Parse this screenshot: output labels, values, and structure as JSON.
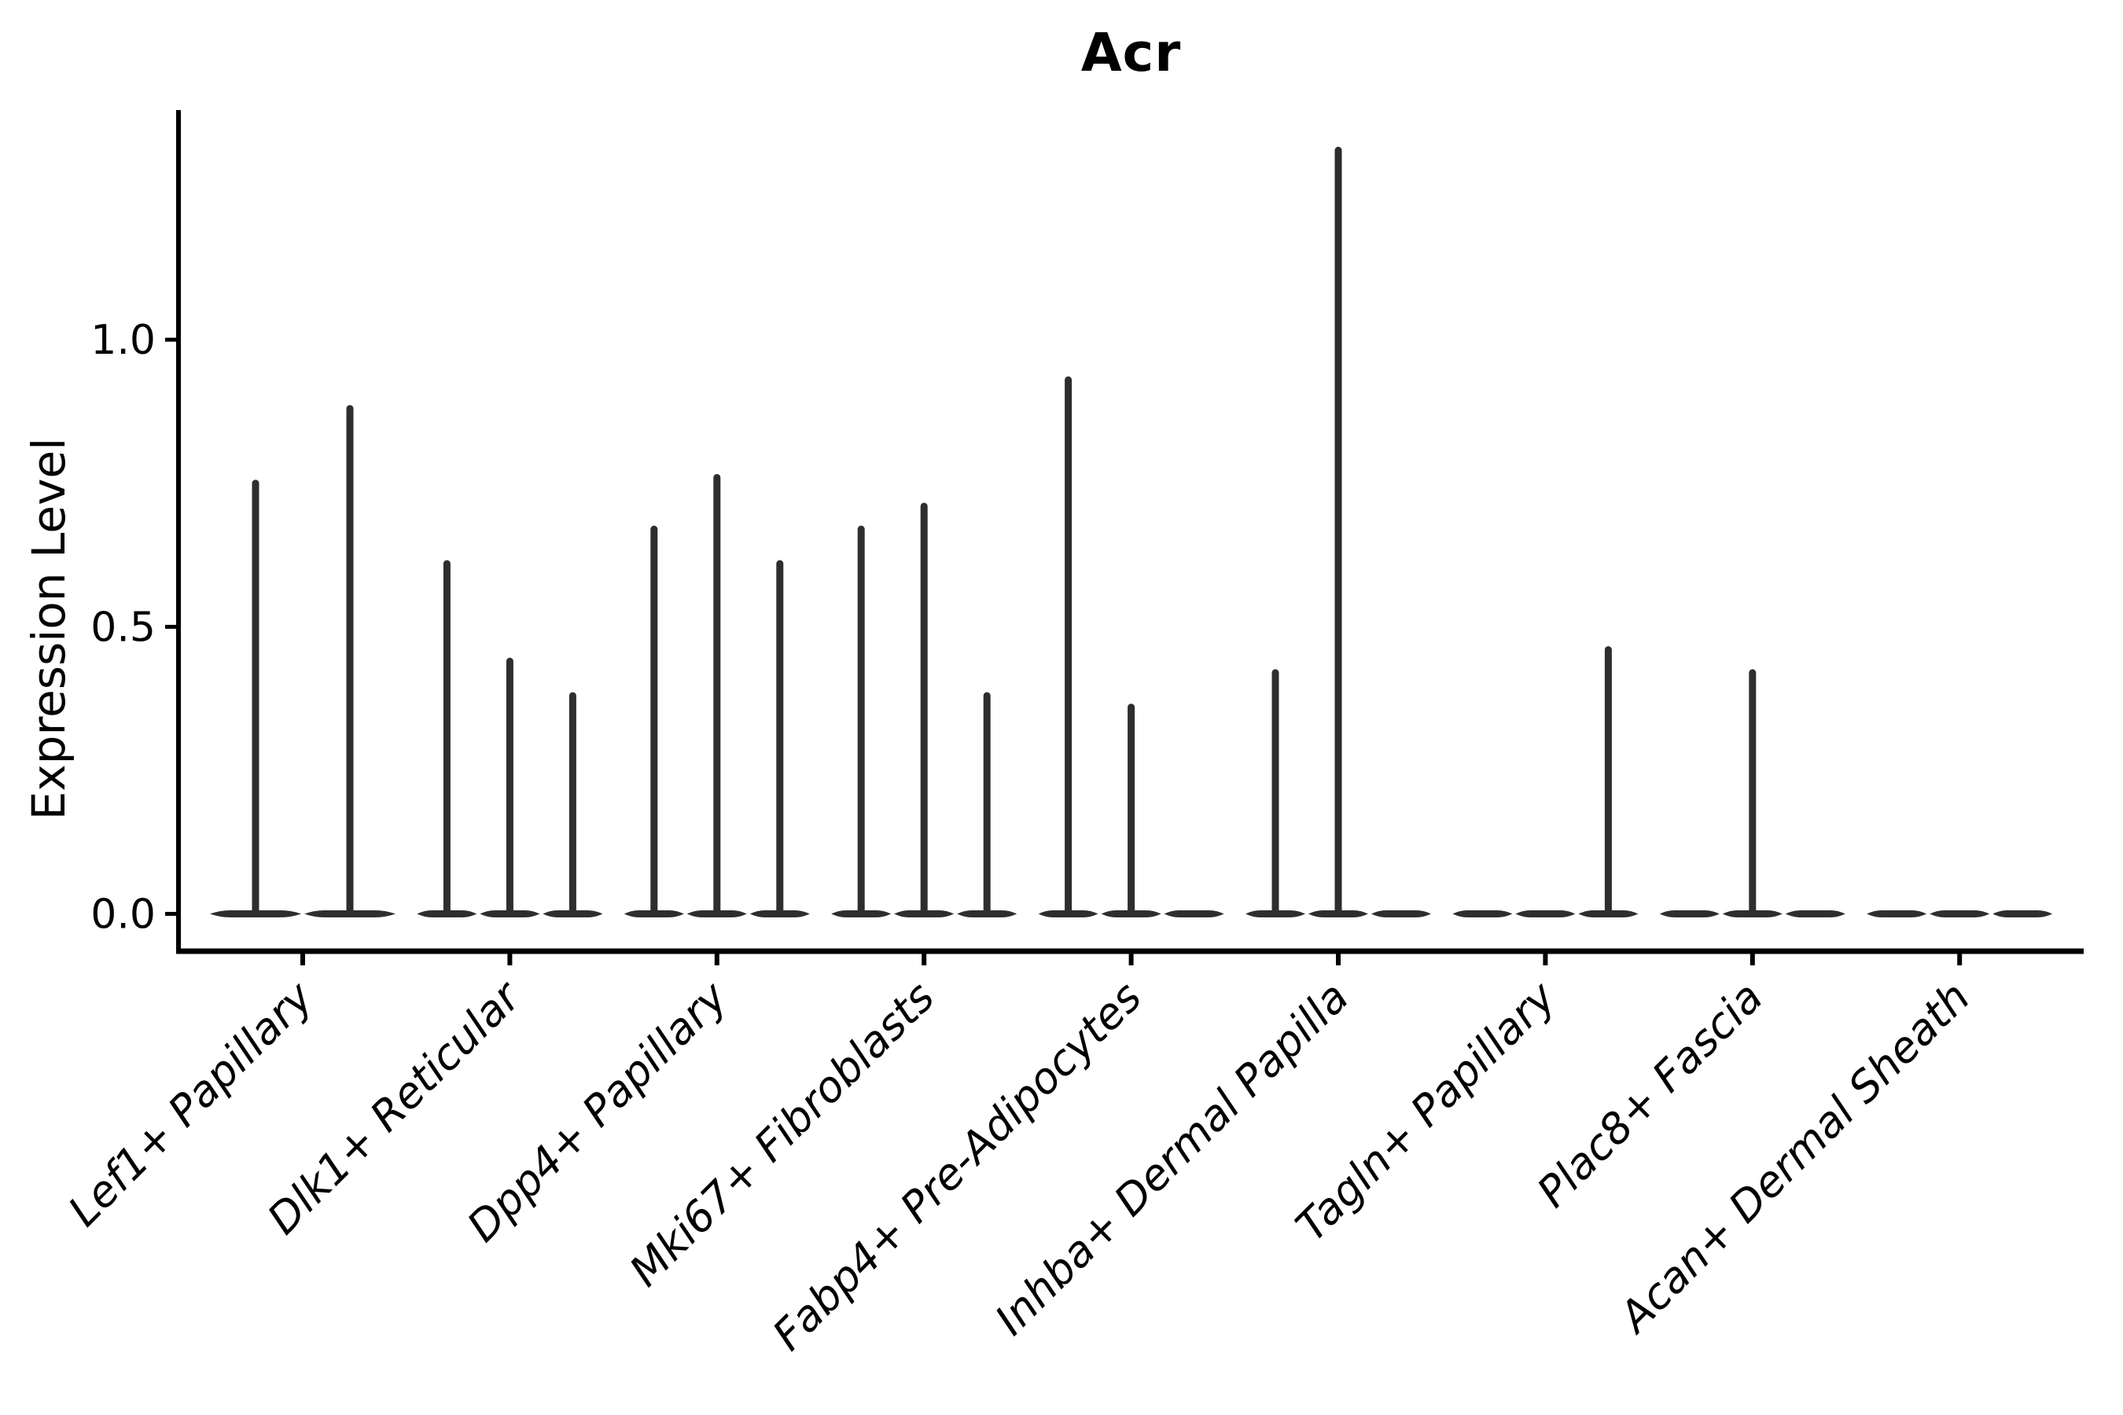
{
  "title": "Acr",
  "ylabel": "Expression Level",
  "colors": {
    "violin_fill": "#2e2e2e",
    "axis": "#000000",
    "text": "#000000",
    "background": "#ffffff"
  },
  "chart_data": {
    "type": "violin",
    "title": "Acr",
    "xlabel": "",
    "ylabel": "Expression Level",
    "yticks": [
      0.0,
      0.5,
      1.0
    ],
    "ytick_labels": [
      "0.0",
      "0.5",
      "1.0"
    ],
    "ylim": [
      -0.065,
      1.4
    ],
    "grid": false,
    "legend": "none",
    "categories": [
      "Lef1+ Papillary",
      "Dlk1+ Reticular",
      "Dpp4+ Papillary",
      "Mki67+ Fibroblasts",
      "Fabp4+ Pre-Adipocytes",
      "Inhba+ Dermal Papilla",
      "Tagln+ Papillary",
      "Plac8+ Fascia",
      "Acan+ Dermal Sheath"
    ],
    "description": "Sparse violin plot: each category shows flat density bodies at 0 with thin spikes reaching the maximum expression value of each sub-violin (0 means flat body, no spike).",
    "violins": [
      {
        "category": "Lef1+ Papillary",
        "sub_max": [
          0.75,
          0.88
        ]
      },
      {
        "category": "Dlk1+ Reticular",
        "sub_max": [
          0.61,
          0.44,
          0.38
        ]
      },
      {
        "category": "Dpp4+ Papillary",
        "sub_max": [
          0.67,
          0.76,
          0.61
        ]
      },
      {
        "category": "Mki67+ Fibroblasts",
        "sub_max": [
          0.67,
          0.71,
          0.38
        ]
      },
      {
        "category": "Fabp4+ Pre-Adipocytes",
        "sub_max": [
          0.93,
          0.36,
          0
        ]
      },
      {
        "category": "Inhba+ Dermal Papilla",
        "sub_max": [
          0.42,
          1.33,
          0
        ]
      },
      {
        "category": "Tagln+ Papillary",
        "sub_max": [
          0,
          0,
          0.46
        ]
      },
      {
        "category": "Plac8+ Fascia",
        "sub_max": [
          0,
          0.42,
          0
        ]
      },
      {
        "category": "Acan+ Dermal Sheath",
        "sub_max": [
          0,
          0,
          0
        ]
      }
    ]
  }
}
